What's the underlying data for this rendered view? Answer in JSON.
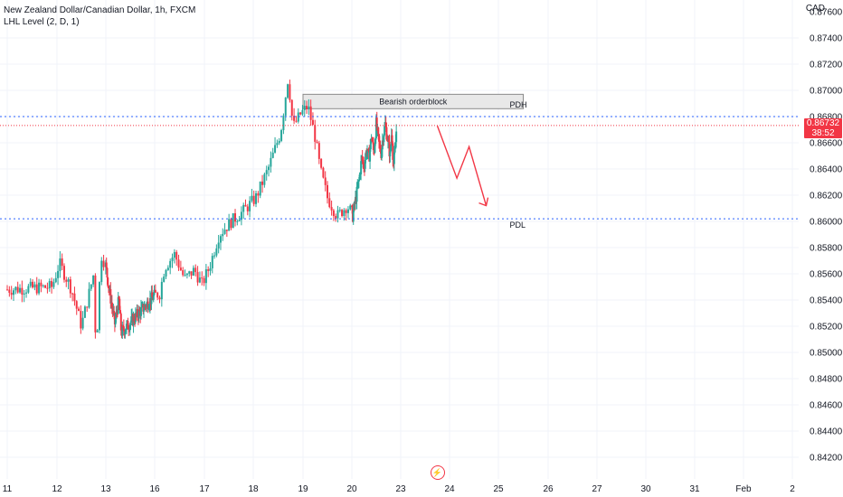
{
  "header": {
    "symbol_line": "New Zealand Dollar/Canadian Dollar, 1h, FXCM",
    "indicator_line": "LHL Level (2, D, 1)",
    "currency": "CAD"
  },
  "price_tag": {
    "price": "0.86732",
    "countdown": "38:52"
  },
  "alert_icon": "lightning-icon",
  "colors": {
    "up": "#26a69a",
    "down": "#f23645",
    "level_line": "#2962ff",
    "current_line": "#f23645"
  },
  "chart_data": {
    "type": "candlestick",
    "y_axis": {
      "ylim": [
        0.841,
        0.8768
      ],
      "ticks": [
        "0.84200",
        "0.84400",
        "0.84600",
        "0.84800",
        "0.85000",
        "0.85200",
        "0.85400",
        "0.85600",
        "0.85800",
        "0.86000",
        "0.86200",
        "0.86400",
        "0.86600",
        "0.86800",
        "0.87000",
        "0.87200",
        "0.87400"
      ]
    },
    "x_axis": {
      "ticks": [
        "11",
        "12",
        "13",
        "16",
        "17",
        "18",
        "19",
        "20",
        "23",
        "24",
        "25",
        "26",
        "27",
        "30",
        "31",
        "Feb",
        "2"
      ]
    },
    "levels": [
      {
        "label": "PDH",
        "value": 0.868
      },
      {
        "label": "PDL",
        "value": 0.8602
      }
    ],
    "current_price": 0.86732,
    "zone": {
      "label": "Bearish orderblock",
      "top": 0.8697,
      "bottom": 0.8686,
      "from_day": 19,
      "to_day": 25.5
    },
    "projection": [
      [
        23.75,
        0.8673
      ],
      [
        24.15,
        0.8633
      ],
      [
        24.4,
        0.8657
      ],
      [
        24.75,
        0.8612
      ]
    ],
    "anchors": [
      [
        11.9,
        0.855
      ],
      [
        12.05,
        0.8568
      ],
      [
        12.3,
        0.8548
      ],
      [
        12.5,
        0.852
      ],
      [
        12.75,
        0.856
      ],
      [
        12.8,
        0.85
      ],
      [
        12.9,
        0.8575
      ],
      [
        13.2,
        0.8548
      ],
      [
        13.45,
        0.853
      ],
      [
        13.55,
        0.8522
      ],
      [
        13.8,
        0.854
      ],
      [
        13.95,
        0.8515
      ],
      [
        16.1,
        0.8545
      ],
      [
        16.2,
        0.8565
      ],
      [
        16.4,
        0.8575
      ],
      [
        16.6,
        0.8556
      ],
      [
        16.8,
        0.8563
      ],
      [
        16.95,
        0.8552
      ],
      [
        17.1,
        0.8565
      ],
      [
        17.3,
        0.859
      ],
      [
        17.55,
        0.86
      ],
      [
        17.8,
        0.8608
      ],
      [
        18.05,
        0.8618
      ],
      [
        18.3,
        0.864
      ],
      [
        18.55,
        0.8668
      ],
      [
        18.7,
        0.871
      ],
      [
        18.8,
        0.8672
      ],
      [
        18.95,
        0.8682
      ],
      [
        19.1,
        0.8688
      ],
      [
        19.25,
        0.8664
      ],
      [
        19.35,
        0.864
      ],
      [
        19.5,
        0.8618
      ],
      [
        19.7,
        0.8604
      ],
      [
        19.9,
        0.8612
      ],
      [
        20.05,
        0.8604
      ],
      [
        20.25,
        0.8618
      ],
      [
        20.45,
        0.8632
      ],
      [
        20.6,
        0.8648
      ],
      [
        20.75,
        0.8642
      ],
      [
        20.9,
        0.8655
      ],
      [
        21.05,
        0.8648
      ],
      [
        21.2,
        0.8665
      ],
      [
        21.35,
        0.8652
      ],
      [
        21.5,
        0.8675
      ],
      [
        21.65,
        0.866
      ],
      [
        21.8,
        0.8652
      ],
      [
        21.9,
        0.8664
      ],
      [
        22.05,
        0.8674
      ],
      [
        22.2,
        0.8662
      ],
      [
        22.35,
        0.865
      ],
      [
        22.45,
        0.867
      ],
      [
        22.55,
        0.8643
      ],
      [
        22.65,
        0.8653
      ],
      [
        22.75,
        0.8673
      ]
    ]
  }
}
